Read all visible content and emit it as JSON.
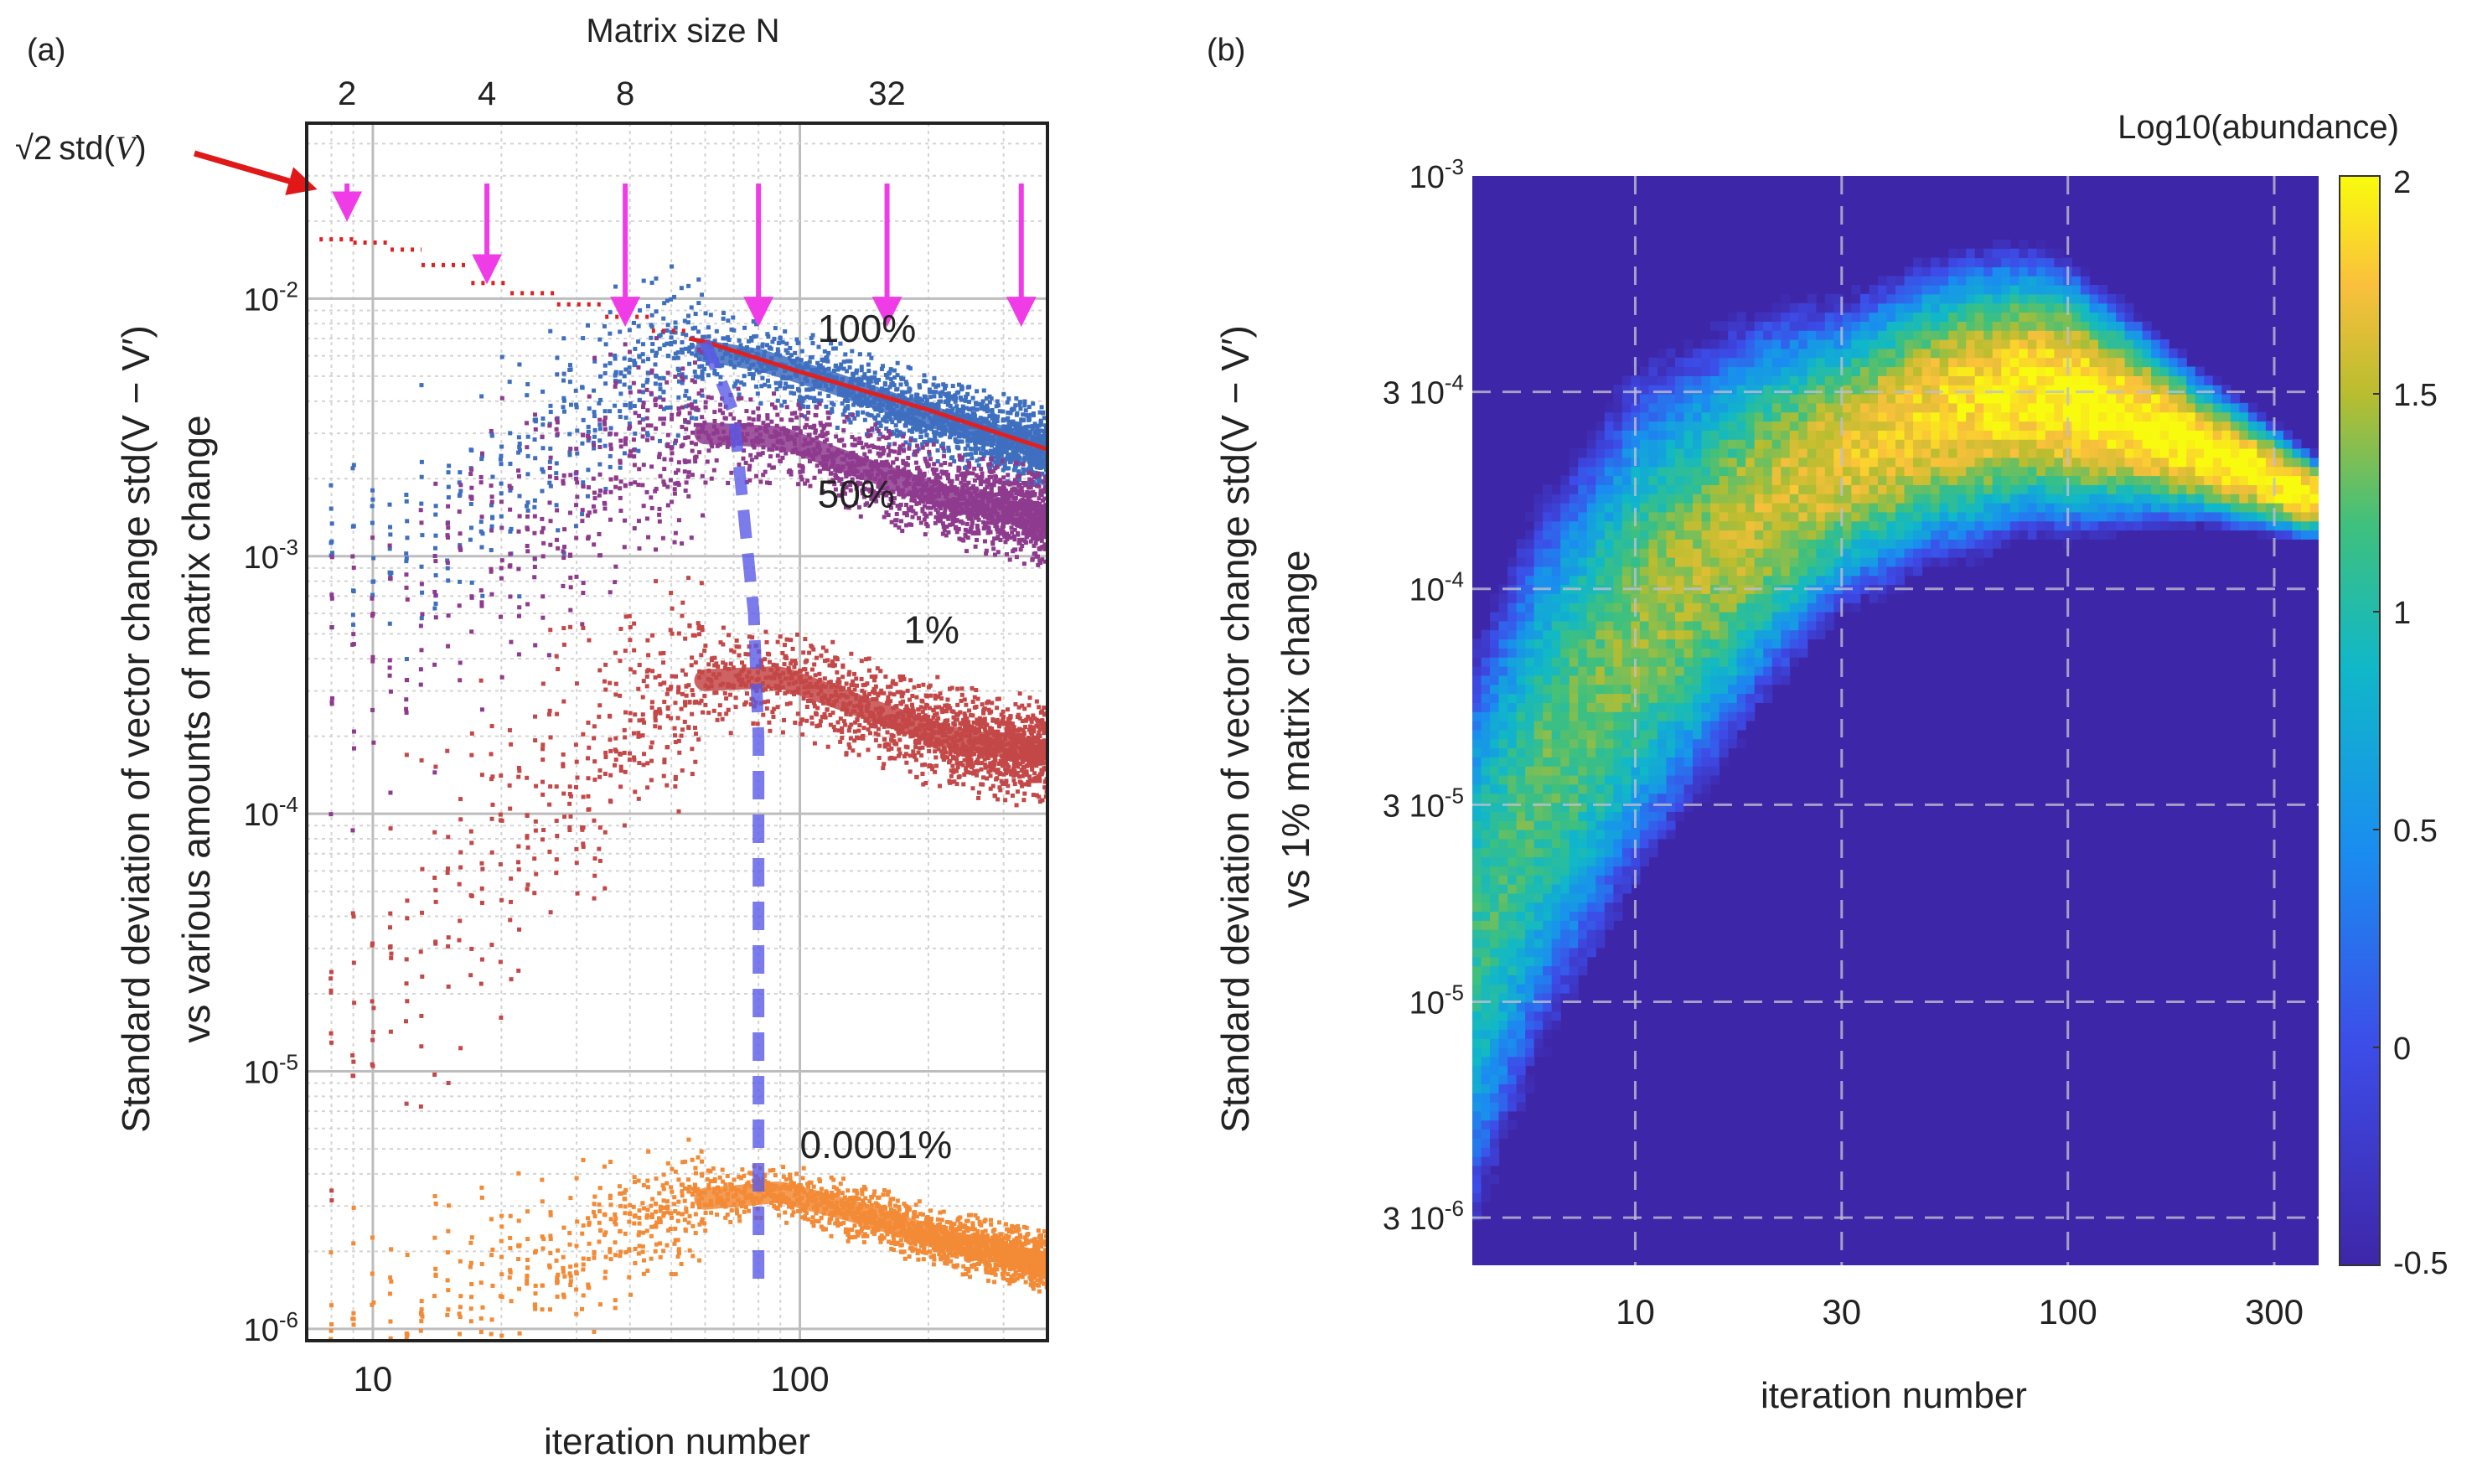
{
  "panel_a": {
    "label": "(a)",
    "sqrt2_annotation": {
      "prefix": "√2",
      "func": "std(",
      "var": "V",
      "suffix": ")"
    },
    "top_axis_title": "Matrix size N",
    "top_ticks": [
      {
        "label": "2",
        "iteration": 8.7
      },
      {
        "label": "4",
        "iteration": 18.5
      },
      {
        "label": "8",
        "iteration": 39
      },
      {
        "label": "32",
        "iteration": 160
      }
    ],
    "y_title_line1": "Standard deviation of vector change std(V − V′)",
    "y_title_line2": "vs various amounts of matrix change",
    "x_title": "iteration number",
    "x_ticks": [
      "10",
      "100"
    ],
    "y_ticks": [
      "10^-6",
      "10^-5",
      "10^-4",
      "10^-3",
      "10^-2"
    ]
  },
  "panel_b": {
    "label": "(b)",
    "colorbar_title": "Log10(abundance)",
    "colorbar_ticks": [
      "2",
      "1.5",
      "1",
      "0.5",
      "0",
      "-0.5"
    ],
    "y_title_line1": "Standard deviation of vector change std(V − V′)",
    "y_title_line2": "vs 1% matrix change",
    "x_title": "iteration number",
    "x_ticks": [
      "10",
      "30",
      "100",
      "300"
    ],
    "y_ticks": [
      "10^-3",
      "3 10^-4",
      "10^-4",
      "3 10^-5",
      "10^-5",
      "3 10^-6"
    ]
  },
  "chart_data": [
    {
      "type": "scatter",
      "panel": "a",
      "xscale": "log",
      "yscale": "log",
      "xlim": [
        7,
        380
      ],
      "ylim": [
        9e-07,
        0.048
      ],
      "xlabel": "iteration number",
      "ylabel": "Standard deviation of vector change std(V − V′) vs various amounts of matrix change",
      "secondary_x": {
        "label": "Matrix size N",
        "ticks": [
          "2",
          "4",
          "8",
          "32"
        ]
      },
      "series": [
        {
          "name": "100%",
          "label": "100%",
          "color": "#3f6fbf",
          "label_at": [
            110,
            0.0068
          ],
          "x": [
            10,
            20,
            40,
            55,
            80,
            120,
            200,
            380
          ],
          "y": [
            0.0009,
            0.002,
            0.0047,
            0.0064,
            0.0058,
            0.0047,
            0.0035,
            0.0026
          ],
          "spread": 1.9
        },
        {
          "name": "50%",
          "label": "50%",
          "color": "#8e3b8e",
          "label_at": [
            110,
            0.00155
          ],
          "x": [
            10,
            20,
            40,
            60,
            90,
            140,
            220,
            380
          ],
          "y": [
            0.0004,
            0.0011,
            0.0024,
            0.003,
            0.0029,
            0.0022,
            0.0017,
            0.0014
          ],
          "spread": 2.1
        },
        {
          "name": "1%",
          "label": "1%",
          "color": "#c44848",
          "label_at": [
            175,
            0.00046
          ],
          "x": [
            8,
            12,
            20,
            35,
            60,
            90,
            140,
            220,
            380
          ],
          "y": [
            1.2e-05,
            3e-05,
            8e-05,
            0.0002,
            0.00033,
            0.00034,
            0.00026,
            0.0002,
            0.00017
          ],
          "spread": 2.3
        },
        {
          "name": "0.0001%",
          "label": "0.0001%",
          "color": "#f28a36",
          "label_at": [
            100,
            4.6e-06
          ],
          "x": [
            8,
            12,
            20,
            35,
            60,
            90,
            140,
            220,
            380
          ],
          "y": [
            1.05e-06,
            1.2e-06,
            1.6e-06,
            2.2e-06,
            3.2e-06,
            3.4e-06,
            2.8e-06,
            2.2e-06,
            1.8e-06
          ],
          "spread": 1.6
        }
      ],
      "reference_line": {
        "name": "√2 std(V)",
        "color": "#e02020",
        "style": "dotted-steps-then-solid",
        "x": [
          7.5,
          9,
          11,
          13,
          17,
          21,
          27,
          35,
          45,
          55,
          60,
          100,
          200,
          380
        ],
        "y": [
          0.017,
          0.0165,
          0.0155,
          0.0135,
          0.0115,
          0.0105,
          0.0095,
          0.0085,
          0.0075,
          0.007,
          0.0068,
          0.0052,
          0.0037,
          0.0026
        ]
      },
      "peak_line": {
        "color": "#5a5ae6",
        "style": "dashed",
        "x": [
          60,
          70,
          78,
          80,
          80,
          80
        ],
        "y": [
          0.0068,
          0.0036,
          0.0006,
          0.0002,
          1e-05,
          1.4e-06
        ]
      },
      "arrows": [
        {
          "iteration": 8.7,
          "from": 0.028,
          "to": 0.021
        },
        {
          "iteration": 18.5,
          "from": 0.028,
          "to": 0.012
        },
        {
          "iteration": 39,
          "from": 0.028,
          "to": 0.0082
        },
        {
          "iteration": 80,
          "from": 0.028,
          "to": 0.0082
        },
        {
          "iteration": 160,
          "from": 0.028,
          "to": 0.0082
        },
        {
          "iteration": 330,
          "from": 0.028,
          "to": 0.0082
        }
      ],
      "arrow_color": "#f03ce6"
    },
    {
      "type": "heatmap",
      "panel": "b",
      "xscale": "log",
      "yscale": "log",
      "xlim": [
        4.2,
        380
      ],
      "ylim": [
        2.3e-06,
        0.001
      ],
      "xlabel": "iteration number",
      "ylabel": "Standard deviation of vector change std(V − V′) vs 1% matrix change",
      "colorbar": {
        "title": "Log10(abundance)",
        "range": [
          -0.5,
          2
        ]
      },
      "ridge": {
        "x": [
          4.2,
          6,
          10,
          20,
          30,
          50,
          80,
          100,
          150,
          250,
          380
        ],
        "y": [
          1.4e-05,
          3.5e-05,
          8e-05,
          0.00016,
          0.00021,
          0.00027,
          0.0003,
          0.00029,
          0.00025,
          0.0002,
          0.000165
        ]
      },
      "band_halfwidth_decades": {
        "x": [
          4.2,
          10,
          30,
          60,
          100,
          200,
          380
        ],
        "w": [
          0.9,
          0.75,
          0.42,
          0.4,
          0.35,
          0.2,
          0.11
        ]
      },
      "peak_value": 2.05
    }
  ]
}
